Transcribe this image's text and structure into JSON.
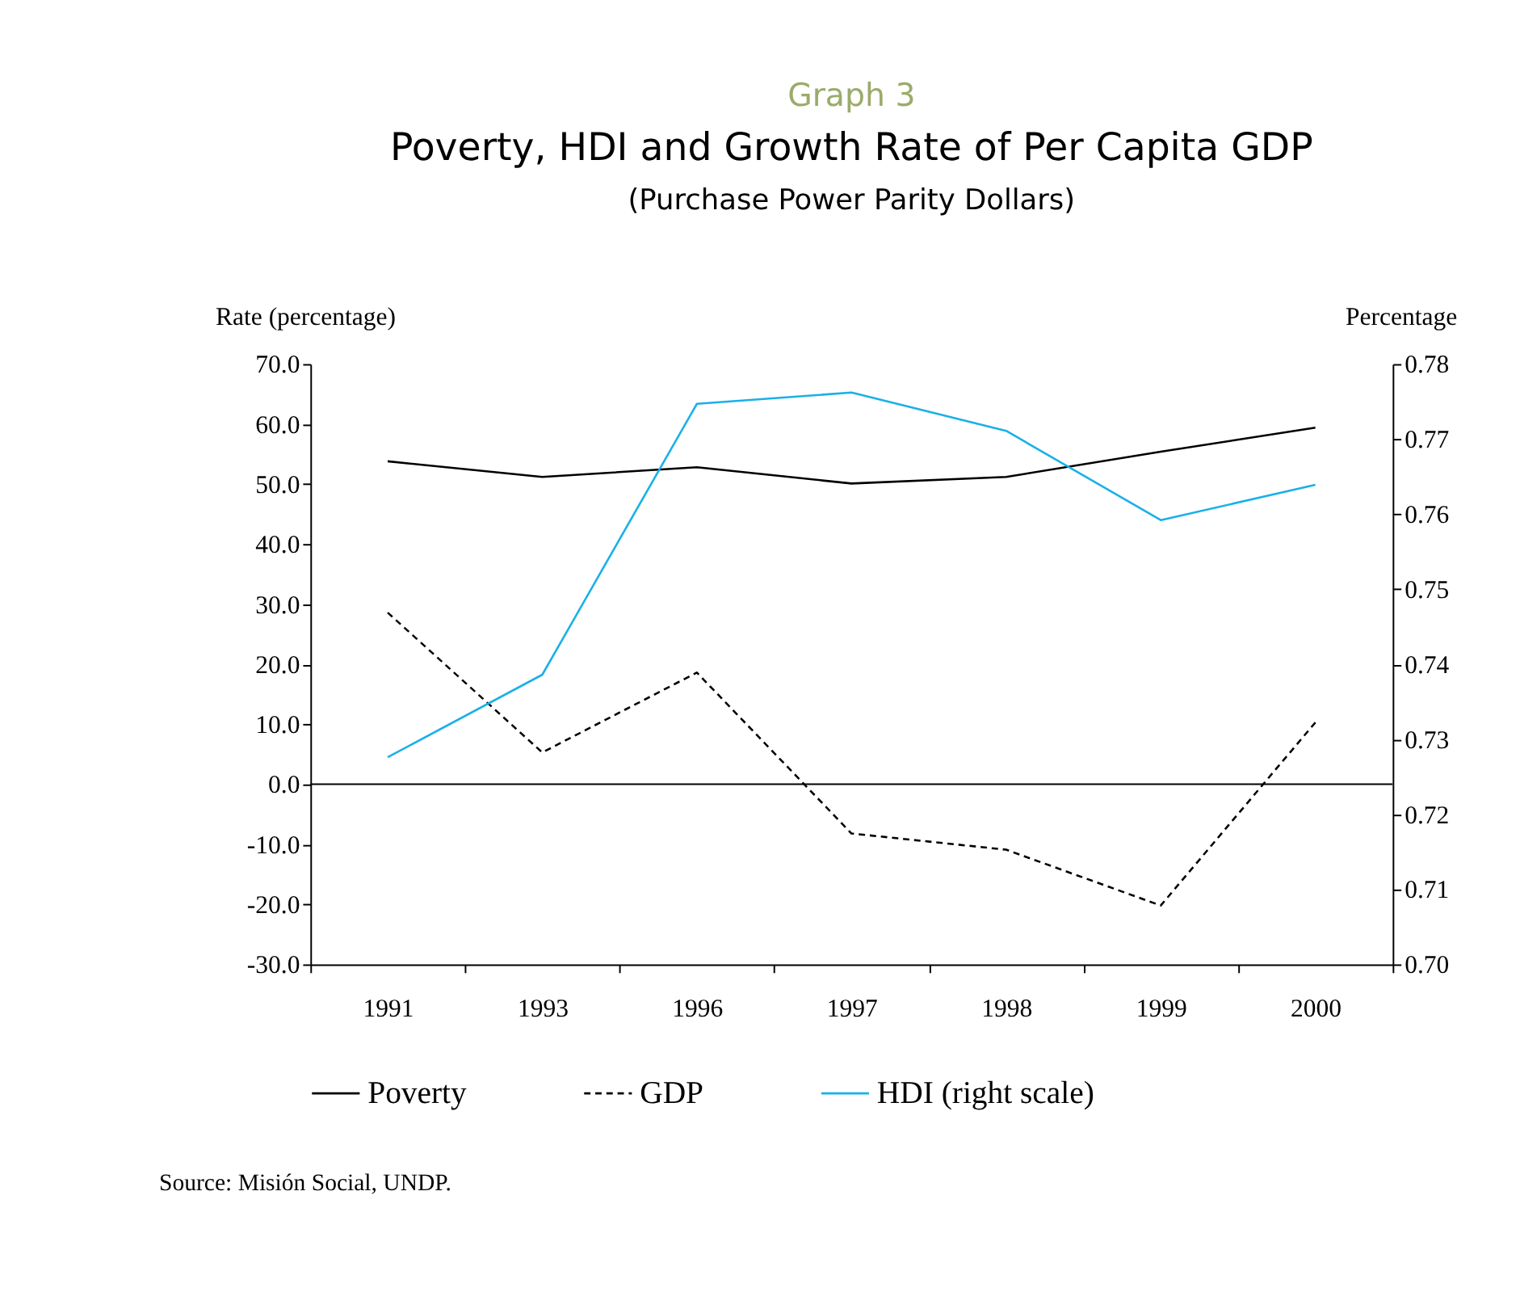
{
  "chart_data": {
    "type": "line",
    "title": "Poverty, HDI and Growth Rate of Per Capita GDP",
    "subtitle": "(Purchase Power Parity Dollars)",
    "annotations": [
      "Graph 3",
      "Source: Misión Social, UNDP."
    ],
    "ylabel": "Rate (percentage)",
    "y2label": "Percentage",
    "categories": [
      "1991",
      "1993",
      "1996",
      "1997",
      "1998",
      "1999",
      "2000"
    ],
    "series": [
      {
        "name": "Poverty",
        "color": "#000000",
        "line_style": "solid",
        "values": [
          53.8,
          51.2,
          52.8,
          50.1,
          51.2,
          55.4,
          59.4
        ]
      },
      {
        "name": "GDP",
        "color": "#000000",
        "line_style": "dashed",
        "values": [
          28.6,
          5.3,
          18.6,
          -8.2,
          -10.9,
          -20.2,
          10.3
        ]
      },
      {
        "name": "HDI (right scale)",
        "color": "#1ab0e8",
        "line_style": "solid",
        "axis": "y2",
        "values": [
          0.7276,
          0.7386,
          0.7747,
          0.7762,
          0.7711,
          0.7592,
          0.7639
        ]
      }
    ],
    "ylim": [
      -30,
      70
    ],
    "yticks": [
      {
        "value": -30,
        "label": "-30.0"
      },
      {
        "value": -20,
        "label": "-20.0"
      },
      {
        "value": -10,
        "label": "-10.0"
      },
      {
        "value": 0,
        "label": "0.0"
      },
      {
        "value": 10,
        "label": "10.0"
      },
      {
        "value": 20,
        "label": "20.0"
      },
      {
        "value": 30,
        "label": "30.0"
      },
      {
        "value": 40,
        "label": "40.0"
      },
      {
        "value": 50,
        "label": "50.0"
      },
      {
        "value": 60,
        "label": "60.0"
      },
      {
        "value": 70,
        "label": "70.0"
      }
    ],
    "y2lim": [
      0.7,
      0.78
    ],
    "y2ticks": [
      {
        "value": 0.7,
        "label": "0.70"
      },
      0.71,
      0.72,
      0.73,
      0.74,
      0.75,
      0.76,
      0.77,
      0.78
    ],
    "ref_lines": [
      {
        "axis": "y",
        "value": 0,
        "color": "#000000"
      }
    ],
    "grid": false,
    "legend": "bottom",
    "marker": "none"
  }
}
